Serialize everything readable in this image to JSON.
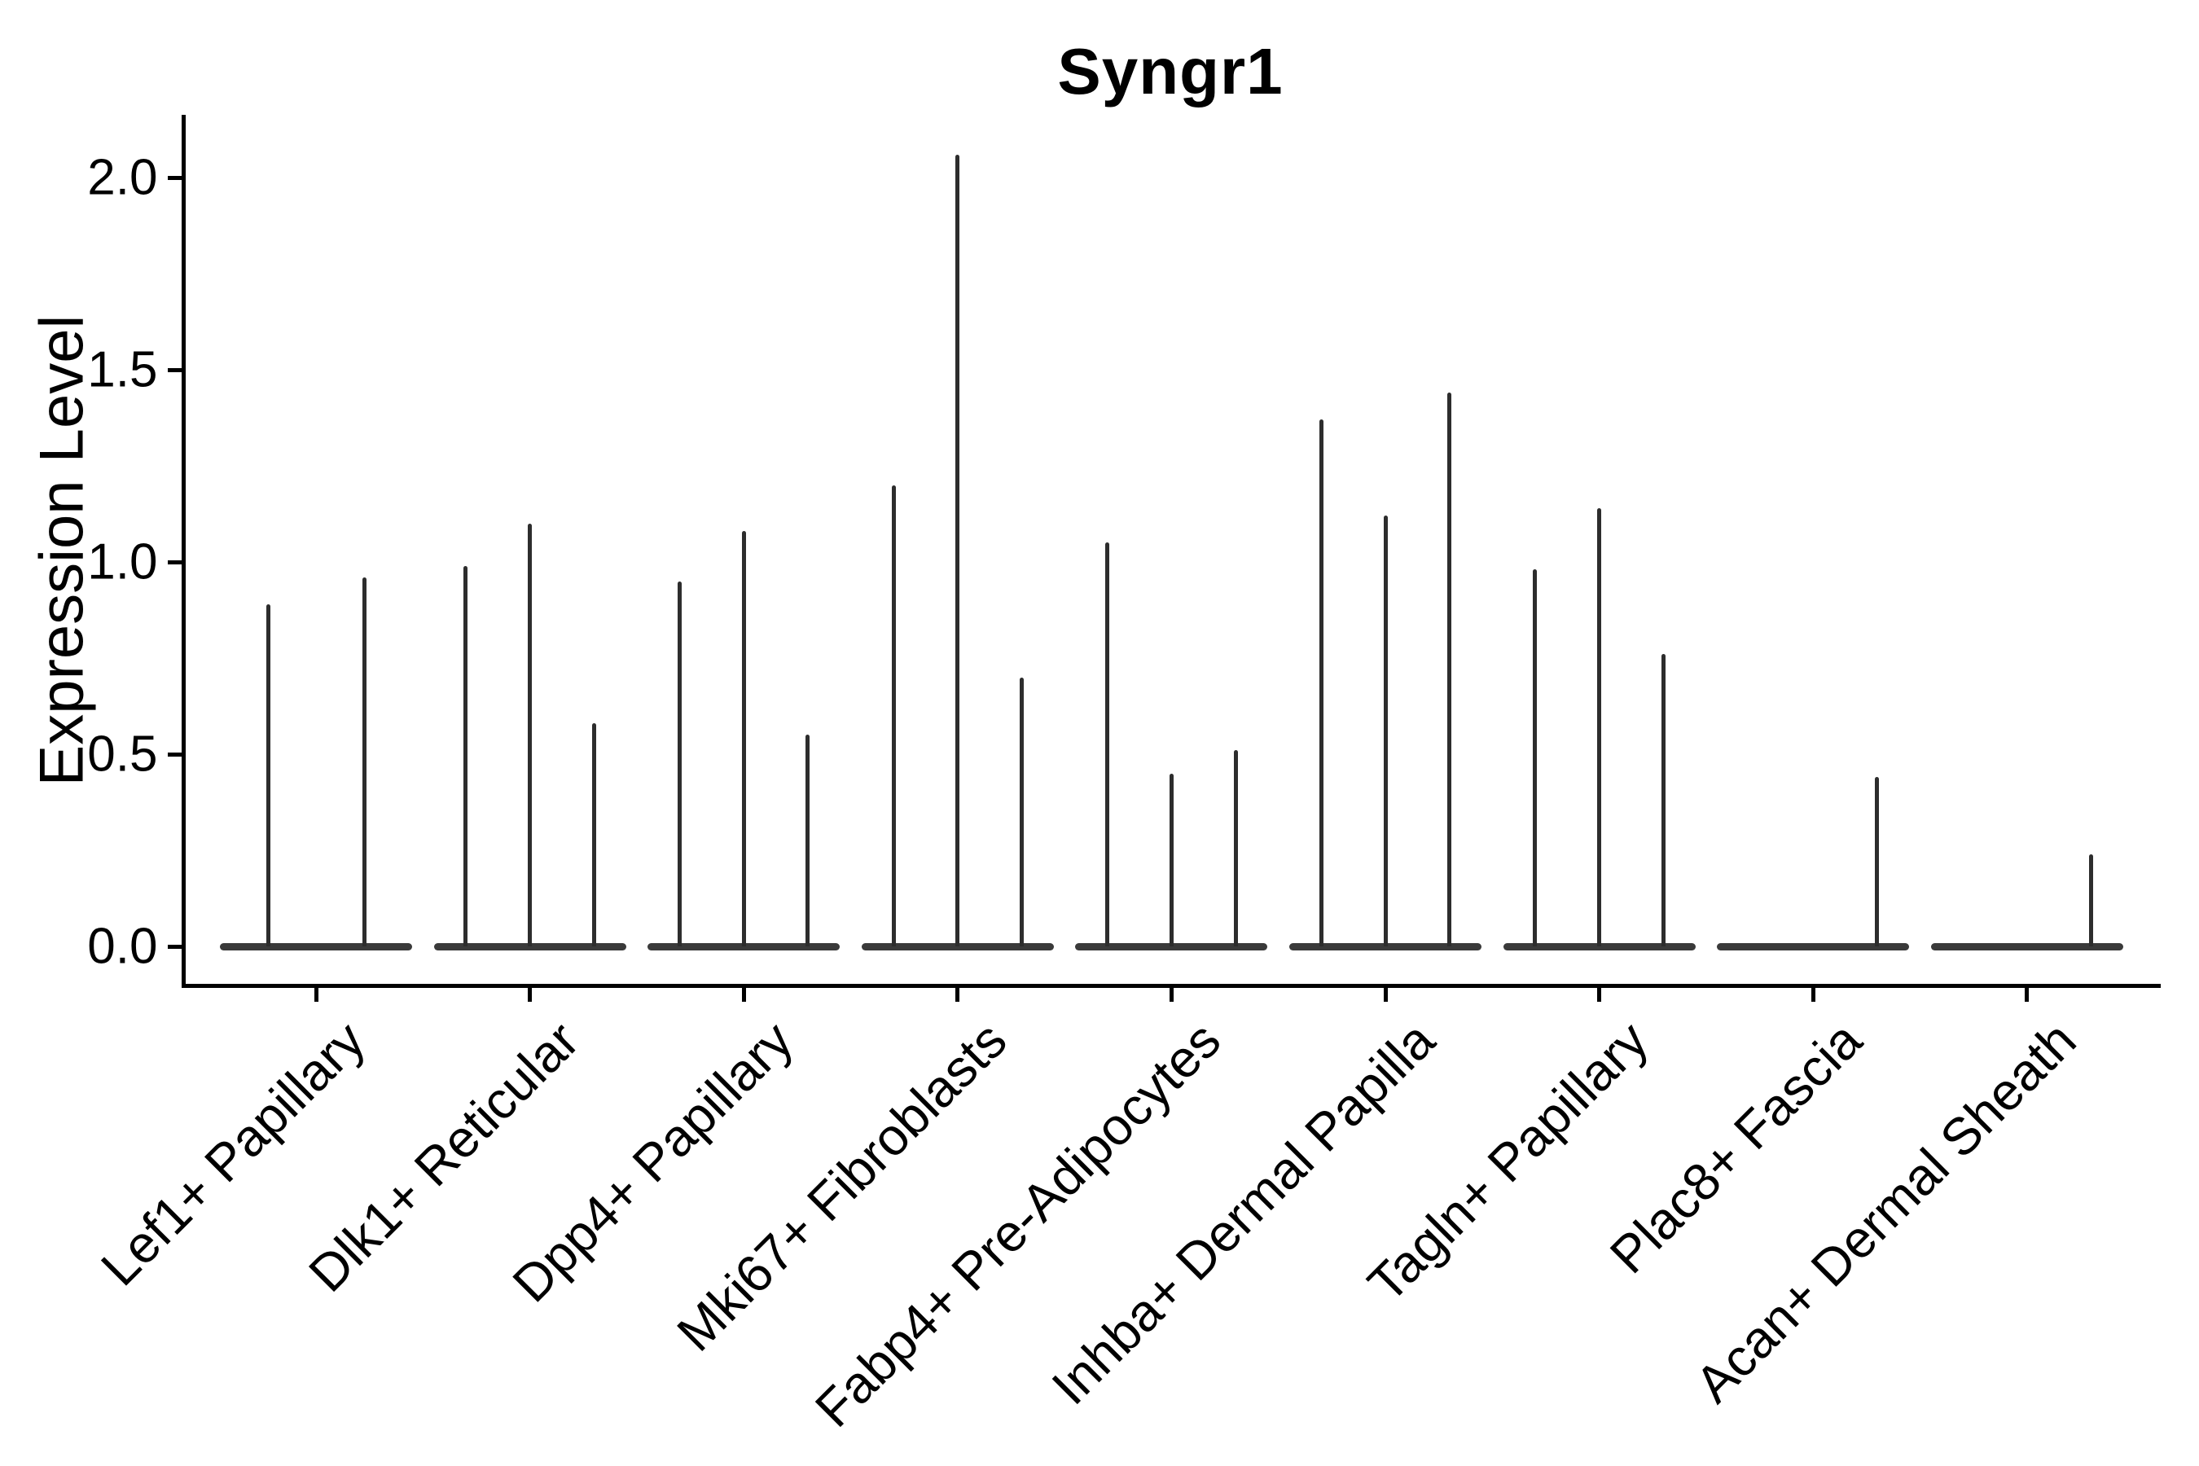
{
  "chart_data": {
    "type": "violin",
    "title": "Syngr1",
    "ylabel": "Expression Level",
    "xlabel": "",
    "grid": false,
    "legend_position": "none",
    "background": "#ffffff",
    "line_color": "#2d2d2d",
    "axis_color": "#000000",
    "ylim": [
      -0.1,
      2.16
    ],
    "ytick_values": [
      0.0,
      0.5,
      1.0,
      1.5,
      2.0
    ],
    "ytick_labels": [
      "0.0",
      "0.5",
      "1.0",
      "1.5",
      "2.0"
    ],
    "x_labels_rotation_deg": 45,
    "violin_shape_note": "each violin is a flat pancake at 0 (nearly all cells at zero expression) with a single thin vertical spike reaching the max expression value",
    "categories": [
      "Lef1+ Papillary",
      "Dlk1+ Reticular",
      "Dpp4+ Papillary",
      "Mki67+ Fibroblasts",
      "Fabp4+ Pre-Adipocytes",
      "Inhba+ Dermal Papilla",
      "Tagln+ Papillary",
      "Plac8+ Fascia",
      "Acan+ Dermal Sheath"
    ],
    "groups": [
      {
        "category": "Lef1+ Papillary",
        "violin_spike_maxima": [
          0.89,
          0.96
        ]
      },
      {
        "category": "Dlk1+ Reticular",
        "violin_spike_maxima": [
          0.99,
          1.1,
          0.58
        ]
      },
      {
        "category": "Dpp4+ Papillary",
        "violin_spike_maxima": [
          0.95,
          1.08,
          0.55
        ]
      },
      {
        "category": "Mki67+ Fibroblasts",
        "violin_spike_maxima": [
          1.2,
          2.06,
          0.7
        ]
      },
      {
        "category": "Fabp4+ Pre-Adipocytes",
        "violin_spike_maxima": [
          1.05,
          0.45,
          0.51
        ]
      },
      {
        "category": "Inhba+ Dermal Papilla",
        "violin_spike_maxima": [
          1.37,
          1.12,
          1.44
        ]
      },
      {
        "category": "Tagln+ Papillary",
        "violin_spike_maxima": [
          0.98,
          1.14,
          0.76
        ]
      },
      {
        "category": "Plac8+ Fascia",
        "violin_spike_maxima": [
          0.0,
          0.0,
          0.44
        ]
      },
      {
        "category": "Acan+ Dermal Sheath",
        "violin_spike_maxima": [
          0.0,
          0.0,
          0.24
        ]
      }
    ]
  }
}
